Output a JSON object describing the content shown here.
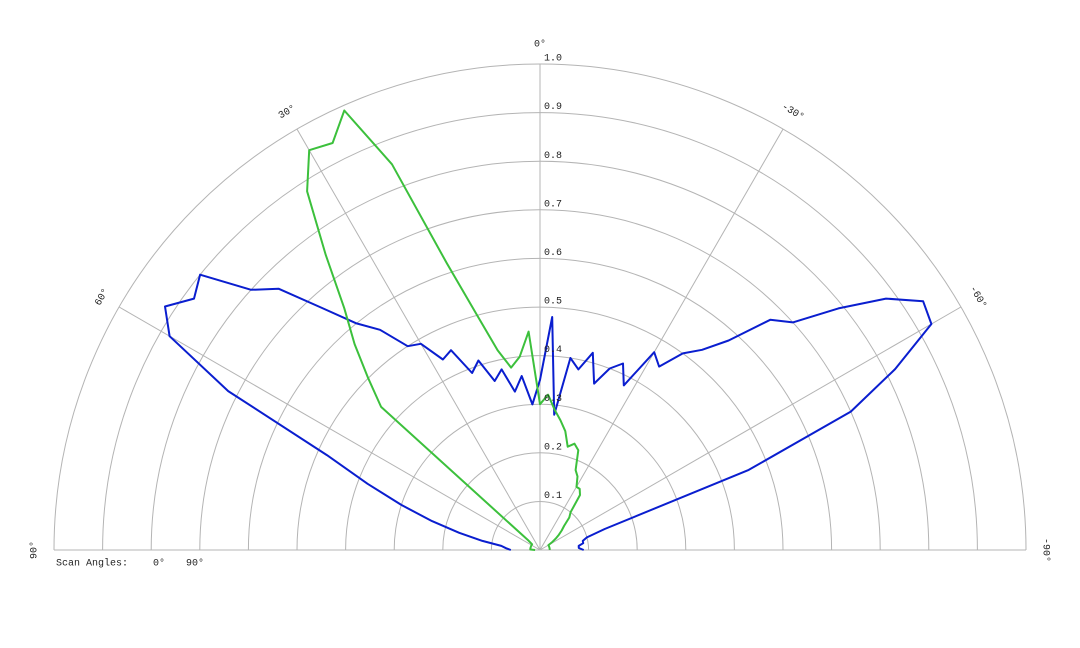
{
  "chart_data": {
    "type": "polar",
    "x": [
      90,
      87,
      84,
      81,
      78,
      75,
      72,
      69,
      66,
      63,
      60,
      57,
      54,
      51,
      48,
      45,
      42,
      39,
      36,
      33,
      30,
      27,
      24,
      21,
      18,
      15,
      12,
      9,
      6,
      3,
      0,
      -3,
      -6,
      -9,
      -12,
      -15,
      -18,
      -21,
      -24,
      -27,
      -30,
      -33,
      -36,
      -39,
      -42,
      -45,
      -48,
      -51,
      -54,
      -57,
      -60,
      -63,
      -66,
      -69,
      -72,
      -75,
      -78,
      -81,
      -84,
      -87,
      -90
    ],
    "series": [
      {
        "name": "0°",
        "color": "#0a1ecf",
        "values": [
          0.06,
          0.07,
          0.08,
          0.12,
          0.17,
          0.23,
          0.3,
          0.38,
          0.48,
          0.72,
          0.88,
          0.92,
          0.88,
          0.9,
          0.8,
          0.76,
          0.67,
          0.6,
          0.56,
          0.5,
          0.49,
          0.44,
          0.45,
          0.39,
          0.41,
          0.36,
          0.38,
          0.33,
          0.36,
          0.3,
          0.35,
          0.48,
          0.28,
          0.4,
          0.38,
          0.42,
          0.36,
          0.4,
          0.42,
          0.38,
          0.47,
          0.45,
          0.5,
          0.53,
          0.58,
          0.67,
          0.7,
          0.79,
          0.88,
          0.94,
          0.93,
          0.82,
          0.7,
          0.46,
          0.14,
          0.1,
          0.09,
          0.09,
          0.08,
          0.08,
          0.09
        ]
      },
      {
        "name": "90°",
        "color": "#3cc03c",
        "values": [
          0.01,
          0.02,
          0.02,
          0.02,
          0.02,
          0.02,
          0.02,
          0.02,
          0.02,
          0.02,
          0.02,
          0.02,
          0.02,
          0.03,
          0.44,
          0.5,
          0.57,
          0.64,
          0.75,
          0.88,
          0.95,
          0.94,
          0.99,
          0.85,
          0.62,
          0.5,
          0.42,
          0.38,
          0.4,
          0.45,
          0.3,
          0.32,
          0.29,
          0.27,
          0.25,
          0.22,
          0.23,
          0.22,
          0.18,
          0.17,
          0.15,
          0.15,
          0.14,
          0.1,
          0.09,
          0.07,
          0.06,
          0.05,
          0.04,
          0.03,
          0.02,
          0.02,
          0.02,
          0.02,
          0.02,
          0.02,
          0.02,
          0.02,
          0.02,
          0.02,
          0.02
        ]
      }
    ],
    "xlim": [
      90,
      -90
    ],
    "xticks": [
      {
        "value": 90,
        "label": "90°"
      },
      {
        "value": 60,
        "label": "60°"
      },
      {
        "value": 30,
        "label": "30°"
      },
      {
        "value": 0,
        "label": "0°"
      },
      {
        "value": -30,
        "label": "-30°"
      },
      {
        "value": -60,
        "label": "-60°"
      },
      {
        "value": -90,
        "label": "-90°"
      }
    ],
    "ylim": [
      0,
      1
    ],
    "yticks": [
      0.1,
      0.2,
      0.3,
      0.4,
      0.5,
      0.6,
      0.7,
      0.8,
      0.9,
      {
        "value": 1,
        "label": "1.0"
      }
    ],
    "grid": true,
    "legend_title": "Scan Angles:"
  }
}
